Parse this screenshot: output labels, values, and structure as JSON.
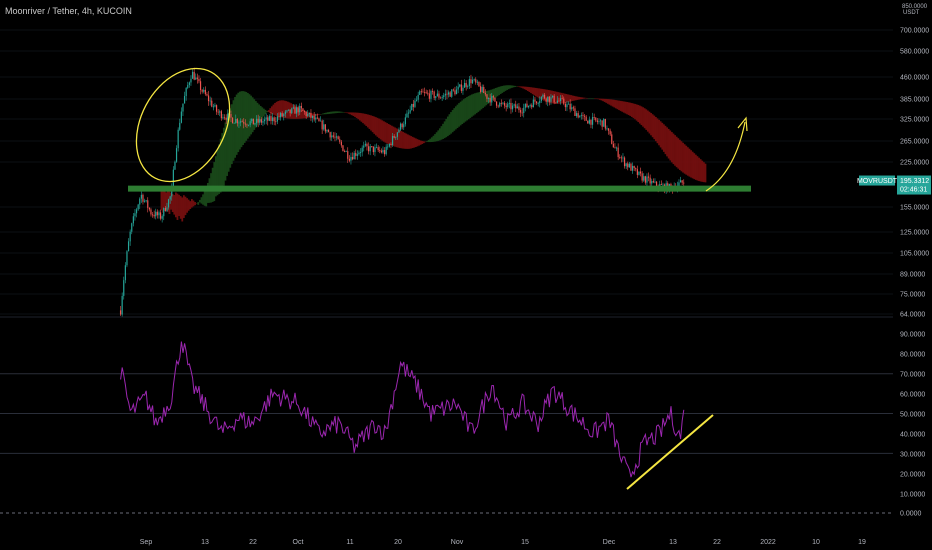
{
  "header": {
    "symbol_title": "Moonriver / Tether, 4h, KUCOIN"
  },
  "price_scale": {
    "currency": "USDT",
    "top_clipped_label": "850.0000"
  },
  "badges": {
    "symbol": "MOVRUSDT",
    "price": "195.3312",
    "countdown": "02:46:31"
  },
  "colors": {
    "background": "#000000",
    "bull": "#26a69a",
    "bear": "#ef5350",
    "support_line": "#2e7d32",
    "rsi_line": "#9c27b0",
    "annotation": "#f5e642",
    "cloud_bear": "#7a1010",
    "cloud_bull": "#1b4d1b",
    "badge": "#26a69a"
  },
  "chart_data": [
    {
      "type": "candlestick",
      "title": "",
      "ylabel": "",
      "y_scale": "log",
      "y_ticks": [
        "700.0000",
        "580.0000",
        "460.0000",
        "385.0000",
        "325.0000",
        "265.0000",
        "225.0000",
        "155.0000",
        "125.0000",
        "105.0000",
        "89.0000",
        "75.0000",
        "64.0000"
      ],
      "x_ticks": [
        "Sep",
        "13",
        "22",
        "Oct",
        "11",
        "20",
        "Nov",
        "15",
        "Dec",
        "13",
        "22",
        "2022",
        "10",
        "19"
      ],
      "close_anchors": [
        {
          "date": "2021-08-27",
          "close": 66
        },
        {
          "date": "2021-08-29",
          "close": 130
        },
        {
          "date": "2021-08-31",
          "close": 175
        },
        {
          "date": "2021-09-02",
          "close": 150
        },
        {
          "date": "2021-09-04",
          "close": 145
        },
        {
          "date": "2021-09-06",
          "close": 175
        },
        {
          "date": "2021-09-08",
          "close": 360
        },
        {
          "date": "2021-09-10",
          "close": 490
        },
        {
          "date": "2021-09-12",
          "close": 420
        },
        {
          "date": "2021-09-15",
          "close": 350
        },
        {
          "date": "2021-09-18",
          "close": 330
        },
        {
          "date": "2021-09-22",
          "close": 320
        },
        {
          "date": "2021-09-26",
          "close": 330
        },
        {
          "date": "2021-10-01",
          "close": 360
        },
        {
          "date": "2021-10-05",
          "close": 320
        },
        {
          "date": "2021-10-09",
          "close": 270
        },
        {
          "date": "2021-10-11",
          "close": 240
        },
        {
          "date": "2021-10-14",
          "close": 260
        },
        {
          "date": "2021-10-18",
          "close": 250
        },
        {
          "date": "2021-10-22",
          "close": 330
        },
        {
          "date": "2021-10-25",
          "close": 410
        },
        {
          "date": "2021-10-29",
          "close": 400
        },
        {
          "date": "2021-11-01",
          "close": 420
        },
        {
          "date": "2021-11-04",
          "close": 460
        },
        {
          "date": "2021-11-07",
          "close": 400
        },
        {
          "date": "2021-11-10",
          "close": 370
        },
        {
          "date": "2021-11-14",
          "close": 360
        },
        {
          "date": "2021-11-18",
          "close": 400
        },
        {
          "date": "2021-11-22",
          "close": 380
        },
        {
          "date": "2021-11-26",
          "close": 330
        },
        {
          "date": "2021-11-30",
          "close": 320
        },
        {
          "date": "2021-12-02",
          "close": 260
        },
        {
          "date": "2021-12-04",
          "close": 230
        },
        {
          "date": "2021-12-07",
          "close": 205
        },
        {
          "date": "2021-12-10",
          "close": 190
        },
        {
          "date": "2021-12-13",
          "close": 185
        },
        {
          "date": "2021-12-16",
          "close": 195.33
        }
      ],
      "support_level": 184,
      "current_price": 195.3312
    },
    {
      "type": "line",
      "name": "RSI",
      "y_ticks": [
        "90.0000",
        "80.0000",
        "70.0000",
        "60.0000",
        "50.0000",
        "40.0000",
        "30.0000",
        "20.0000",
        "10.0000",
        "0.0000"
      ],
      "guide_levels": [
        70,
        50,
        30
      ],
      "zero_level": 0,
      "ylim": [
        0,
        90
      ],
      "anchors": [
        {
          "date": "2021-08-27",
          "value": 72
        },
        {
          "date": "2021-08-29",
          "value": 50
        },
        {
          "date": "2021-09-01",
          "value": 58
        },
        {
          "date": "2021-09-03",
          "value": 45
        },
        {
          "date": "2021-09-06",
          "value": 58
        },
        {
          "date": "2021-09-08",
          "value": 88
        },
        {
          "date": "2021-09-10",
          "value": 65
        },
        {
          "date": "2021-09-13",
          "value": 52
        },
        {
          "date": "2021-09-16",
          "value": 40
        },
        {
          "date": "2021-09-19",
          "value": 48
        },
        {
          "date": "2021-09-22",
          "value": 45
        },
        {
          "date": "2021-09-26",
          "value": 60
        },
        {
          "date": "2021-10-01",
          "value": 55
        },
        {
          "date": "2021-10-05",
          "value": 40
        },
        {
          "date": "2021-10-09",
          "value": 45
        },
        {
          "date": "2021-10-12",
          "value": 33
        },
        {
          "date": "2021-10-16",
          "value": 45
        },
        {
          "date": "2021-10-18",
          "value": 40
        },
        {
          "date": "2021-10-21",
          "value": 75
        },
        {
          "date": "2021-10-24",
          "value": 65
        },
        {
          "date": "2021-10-27",
          "value": 50
        },
        {
          "date": "2021-11-01",
          "value": 55
        },
        {
          "date": "2021-11-04",
          "value": 40
        },
        {
          "date": "2021-11-08",
          "value": 65
        },
        {
          "date": "2021-11-11",
          "value": 45
        },
        {
          "date": "2021-11-14",
          "value": 55
        },
        {
          "date": "2021-11-17",
          "value": 45
        },
        {
          "date": "2021-11-20",
          "value": 62
        },
        {
          "date": "2021-11-24",
          "value": 50
        },
        {
          "date": "2021-11-28",
          "value": 40
        },
        {
          "date": "2021-12-01",
          "value": 47
        },
        {
          "date": "2021-12-03",
          "value": 30
        },
        {
          "date": "2021-12-05",
          "value": 18
        },
        {
          "date": "2021-12-08",
          "value": 35
        },
        {
          "date": "2021-12-11",
          "value": 40
        },
        {
          "date": "2021-12-13",
          "value": 50
        },
        {
          "date": "2021-12-15",
          "value": 38
        },
        {
          "date": "2021-12-16",
          "value": 55
        }
      ]
    }
  ]
}
